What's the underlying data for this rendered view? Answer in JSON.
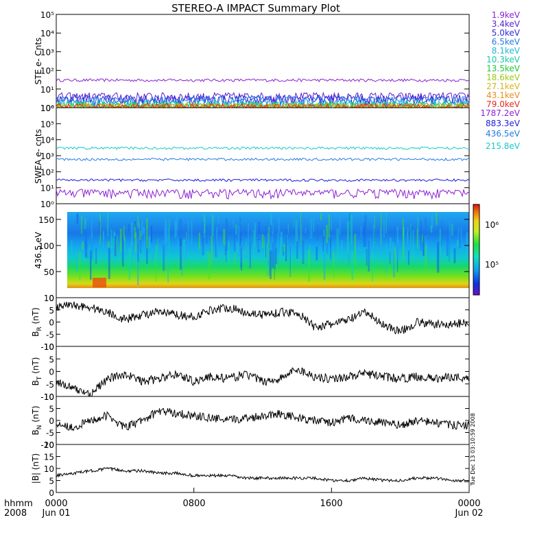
{
  "title": "STEREO-A IMPACT Summary Plot",
  "timestamp": "Tue Dec 13 03:10:59 2008",
  "time_axis": {
    "ticks": [
      {
        "time": "0000",
        "date": "Jun 01"
      },
      {
        "time": "0800",
        "date": ""
      },
      {
        "time": "1600",
        "date": ""
      },
      {
        "time": "0000",
        "date": "Jun 02"
      }
    ],
    "corner_label": "hhmm",
    "year": "2008"
  },
  "colors": {
    "ste": [
      "#8b1fd3",
      "#5a1fcf",
      "#2b2bd8",
      "#1f7be0",
      "#1fb8d8",
      "#16c8a8",
      "#18c838",
      "#98c818",
      "#d8b418",
      "#e88e18",
      "#e02a18"
    ],
    "swea": [
      "#8b1fd3",
      "#1a1ad8",
      "#1f7be0",
      "#16c8c8"
    ],
    "colorbar": [
      "#6a10c8",
      "#1030e0",
      "#10a0f0",
      "#10e0c0",
      "#20e040",
      "#c0f020",
      "#f0d010",
      "#f07010",
      "#e01010"
    ]
  },
  "chart_data": [
    {
      "type": "line",
      "ylabel": "STE e- Cnts",
      "yscale": "log",
      "ylim": [
        1,
        100000
      ],
      "yticks": [
        "10⁰",
        "10¹",
        "10²",
        "10³",
        "10⁴",
        "10⁵"
      ],
      "series": [
        {
          "name": "1.9keV",
          "level": 30
        },
        {
          "name": "3.4keV",
          "level": 4
        },
        {
          "name": "5.0keV",
          "level": 3
        },
        {
          "name": "6.5keV",
          "level": 2.5
        },
        {
          "name": "8.1keV",
          "level": 1.6
        },
        {
          "name": "10.3keV",
          "level": 1.3
        },
        {
          "name": "13.5keV",
          "level": 1.2
        },
        {
          "name": "18.6keV",
          "level": 1.1
        },
        {
          "name": "27.1keV",
          "level": 1.05
        },
        {
          "name": "43.1keV",
          "level": 1.02
        },
        {
          "name": "79.0keV",
          "level": 1.01
        }
      ]
    },
    {
      "type": "line",
      "ylabel": "SWEA e- cnts",
      "yscale": "log",
      "ylim": [
        1,
        1000000
      ],
      "yticks": [
        "10⁰",
        "10¹",
        "10²",
        "10³",
        "10⁴",
        "10⁵",
        "10⁶"
      ],
      "series": [
        {
          "name": "1787.2eV",
          "level": 5
        },
        {
          "name": "883.3eV",
          "level": 30
        },
        {
          "name": "436.5eV",
          "level": 600
        },
        {
          "name": "215.8eV",
          "level": 3000
        }
      ]
    },
    {
      "type": "heatmap",
      "ylabel": "436.5 eV",
      "ylim": [
        0,
        180
      ],
      "yticks": [
        "0",
        "50",
        "100",
        "150"
      ],
      "colorbar_ticks": [
        "10⁵",
        "10⁶"
      ]
    },
    {
      "type": "line",
      "ylabel": "B",
      "ylabel_sub": "R",
      "ylabel_unit": " (nT)",
      "ylim": [
        -10,
        10
      ],
      "yticks": [
        "10",
        "5",
        "0",
        "-5",
        "-10"
      ],
      "x": [
        0,
        1,
        2,
        3,
        4,
        5,
        6,
        7,
        8,
        9,
        10,
        11,
        12,
        13,
        14,
        15,
        16,
        17,
        18,
        19,
        20,
        21,
        22,
        23,
        24
      ],
      "values": [
        6,
        7,
        6,
        4,
        1,
        3,
        4,
        3,
        2,
        5,
        6,
        4,
        3,
        4,
        4,
        -2,
        -1,
        1,
        4,
        -1,
        -4,
        0,
        -1,
        -1,
        0
      ]
    },
    {
      "type": "line",
      "ylabel": "B",
      "ylabel_sub": "T",
      "ylabel_unit": " (nT)",
      "ylim": [
        -10,
        10
      ],
      "yticks": [
        "10",
        "5",
        "0",
        "-5",
        "-10"
      ],
      "x": [
        0,
        1,
        2,
        3,
        4,
        5,
        6,
        7,
        8,
        9,
        10,
        11,
        12,
        13,
        14,
        15,
        16,
        17,
        18,
        19,
        20,
        21,
        22,
        23,
        24
      ],
      "values": [
        -4,
        -7,
        -9,
        -3,
        -1,
        -4,
        -3,
        -1,
        -4,
        -2,
        -3,
        -1,
        -4,
        -3,
        1,
        -2,
        -3,
        -2,
        -1,
        -2,
        -3,
        -2,
        -3,
        -2,
        -3
      ]
    },
    {
      "type": "line",
      "ylabel": "B",
      "ylabel_sub": "N",
      "ylabel_unit": " (nT)",
      "ylim": [
        -10,
        10
      ],
      "yticks": [
        "10",
        "5",
        "0",
        "-5",
        "-10"
      ],
      "x": [
        0,
        1,
        2,
        3,
        4,
        5,
        6,
        7,
        8,
        9,
        10,
        11,
        12,
        13,
        14,
        15,
        16,
        17,
        18,
        19,
        20,
        21,
        22,
        23,
        24
      ],
      "values": [
        -1,
        -3,
        0,
        2,
        -3,
        0,
        4,
        3,
        2,
        1,
        0,
        1,
        2,
        3,
        1,
        0,
        -1,
        1,
        0,
        -1,
        -2,
        0,
        -1,
        -2,
        -2
      ]
    },
    {
      "type": "line",
      "ylabel": "|B| (nT)",
      "ylim": [
        0,
        20
      ],
      "yticks": [
        "20",
        "15",
        "10",
        "5",
        "0"
      ],
      "x": [
        0,
        1,
        2,
        3,
        4,
        5,
        6,
        7,
        8,
        9,
        10,
        11,
        12,
        13,
        14,
        15,
        16,
        17,
        18,
        19,
        20,
        21,
        22,
        23,
        24
      ],
      "values": [
        7,
        8,
        9,
        10,
        9,
        9,
        8,
        8,
        7,
        7,
        7,
        6,
        6,
        6,
        6,
        6,
        5,
        5,
        6,
        5,
        5,
        6,
        6,
        5,
        5
      ]
    }
  ]
}
